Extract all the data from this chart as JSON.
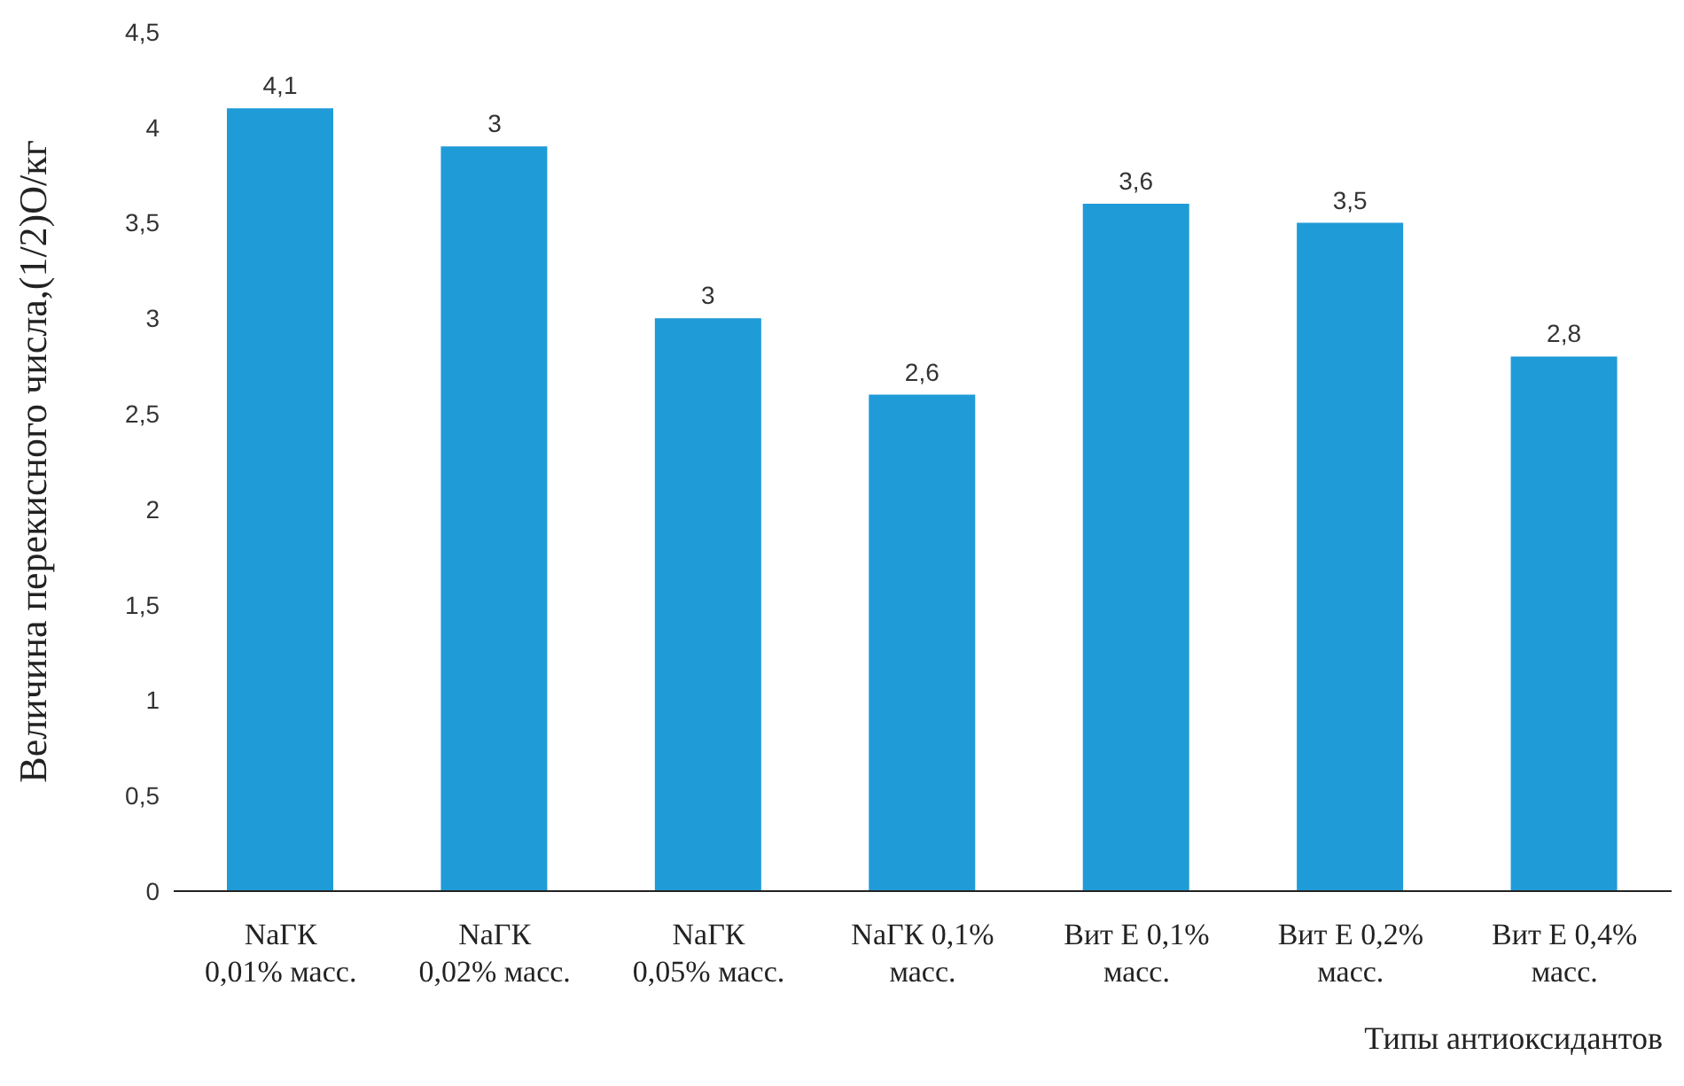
{
  "chart_data": {
    "type": "bar",
    "ylabel": "Величина перекисного числа,(1/2)О/кг",
    "xlabel": "Типы антиоксидантов",
    "categories": [
      "NaГК\n0,01% масс.",
      "NaГК\n0,02% масс.",
      "NaГК\n0,05% масс.",
      "NaГК 0,1%\nмасс.",
      "Вит Е 0,1%\nмасс.",
      "Вит Е 0,2%\nмасс.",
      "Вит Е 0,4%\nмасс."
    ],
    "values": [
      4.1,
      3.9,
      3,
      2.6,
      3.6,
      3.5,
      2.8
    ],
    "value_labels": [
      "4,1",
      null,
      "3",
      "2,6",
      "3,6",
      "3,5",
      "2,8"
    ],
    "annotations": [
      {
        "text": "3",
        "x": "NaГК\n0,02% масс.",
        "y": 3.9
      }
    ],
    "color": "#1f9bd8",
    "ylim": [
      0,
      4.5
    ],
    "yticks": [
      {
        "value": 0,
        "label": "0"
      },
      {
        "value": 0.5,
        "label": "0,5"
      },
      {
        "value": 1,
        "label": "1"
      },
      {
        "value": 1.5,
        "label": "1,5"
      },
      {
        "value": 2,
        "label": "2"
      },
      {
        "value": 2.5,
        "label": "2,5"
      },
      {
        "value": 3,
        "label": "3"
      },
      {
        "value": 3.5,
        "label": "3,5"
      },
      {
        "value": 4,
        "label": "4"
      },
      {
        "value": 4.5,
        "label": "4,5"
      }
    ],
    "grid": false,
    "legend": false
  }
}
